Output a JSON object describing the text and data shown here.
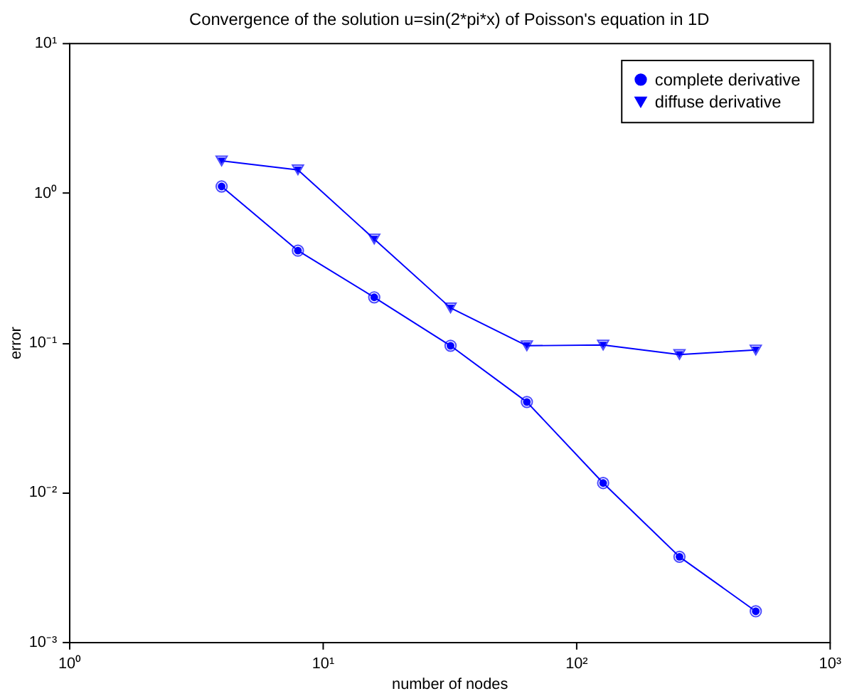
{
  "chart_data": {
    "type": "line",
    "title": "Convergence of the solution u=sin(2*pi*x) of Poisson's equation in 1D",
    "xlabel": "number of nodes",
    "ylabel": "error",
    "x": [
      4,
      8,
      16,
      32,
      64,
      128,
      256,
      512
    ],
    "series": [
      {
        "name": "complete derivative",
        "color": "#0000ff",
        "marker": "circle",
        "values": [
          1.1,
          0.41,
          0.2,
          0.095,
          0.04,
          0.0115,
          0.0037,
          0.0016
        ]
      },
      {
        "name": "diffuse derivative",
        "color": "#0000ff",
        "marker": "triangle",
        "values": [
          1.63,
          1.42,
          0.49,
          0.17,
          0.095,
          0.096,
          0.083,
          0.089
        ]
      }
    ],
    "log": "xy",
    "xlim": [
      1,
      1000
    ],
    "ylim": [
      0.001,
      10
    ],
    "xticks": [
      {
        "value": 1,
        "label": "10⁰"
      },
      {
        "value": 10,
        "label": "10¹"
      },
      {
        "value": 100,
        "label": "10²"
      },
      {
        "value": 1000,
        "label": "10³"
      }
    ],
    "yticks": [
      {
        "value": 0.001,
        "label": "10⁻³"
      },
      {
        "value": 0.01,
        "label": "10⁻²"
      },
      {
        "value": 0.1,
        "label": "10⁻¹"
      },
      {
        "value": 1,
        "label": "10⁰"
      },
      {
        "value": 10,
        "label": "10¹"
      }
    ],
    "grid": false,
    "legend": "top right",
    "line_style": "solid"
  }
}
